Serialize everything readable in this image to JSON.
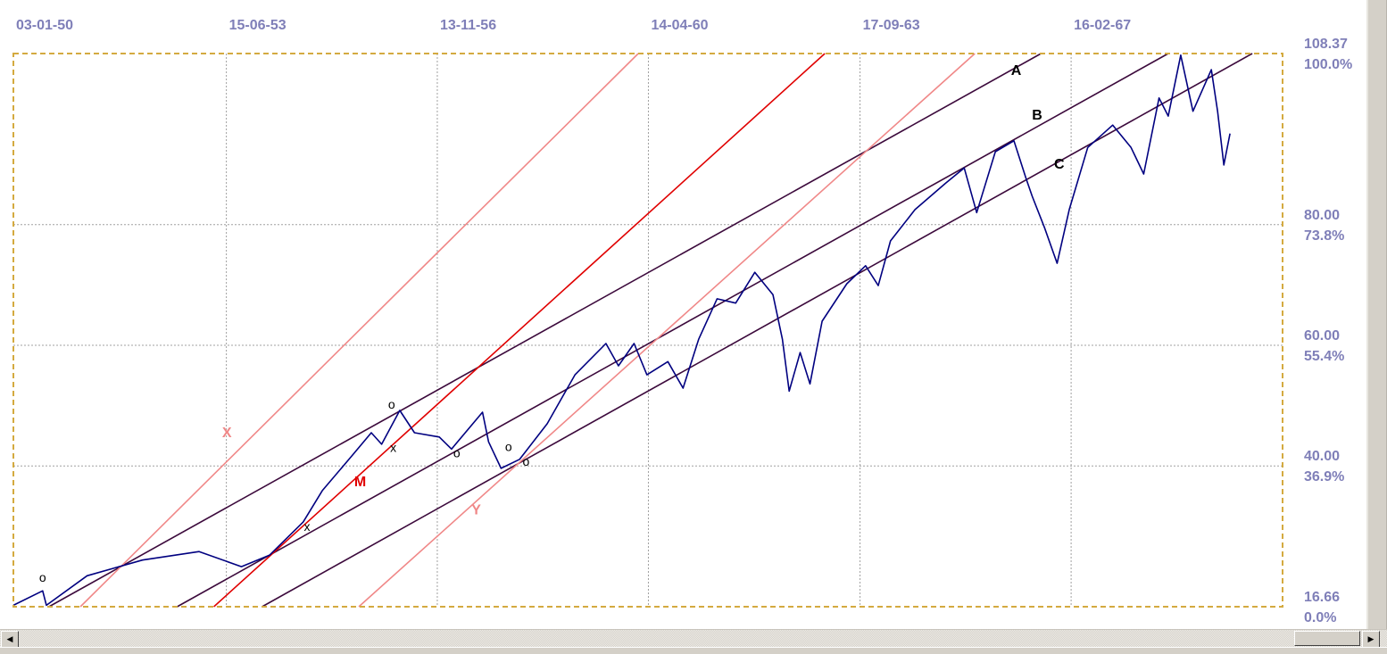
{
  "chart_data": {
    "type": "line",
    "title": "",
    "xlabel": "",
    "ylabel": "",
    "xlim": [
      "1950-01-03",
      "1970-07-20"
    ],
    "ylim": [
      16.66,
      108.37
    ],
    "grid": true,
    "x_ticks": [
      {
        "date": "1950-01-03",
        "label": "03-01-50"
      },
      {
        "date": "1953-06-15",
        "label": "15-06-53"
      },
      {
        "date": "1956-11-13",
        "label": "13-11-56"
      },
      {
        "date": "1960-04-14",
        "label": "14-04-60"
      },
      {
        "date": "1963-09-17",
        "label": "17-09-63"
      },
      {
        "date": "1967-02-16",
        "label": "16-02-67"
      }
    ],
    "y_ticks": [
      {
        "value": 108.37,
        "label": "108.37",
        "pct": "100.0%"
      },
      {
        "value": 80,
        "label": "80.00",
        "pct": "73.8%"
      },
      {
        "value": 60,
        "label": "60.00",
        "pct": "55.4%"
      },
      {
        "value": 40,
        "label": "40.00",
        "pct": "36.9%"
      },
      {
        "value": 16.66,
        "label": "16.66",
        "pct": "0.0%"
      }
    ],
    "series": [
      {
        "color": "#000080",
        "points": [
          [
            "1950-01-03",
            16.9
          ],
          [
            "1950-06-25",
            19.3
          ],
          [
            "1950-07-17",
            16.9
          ],
          [
            "1951-03-15",
            21.8
          ],
          [
            "1952-02-05",
            24.4
          ],
          [
            "1953-01-05",
            25.8
          ],
          [
            "1953-09-12",
            23.3
          ],
          [
            "1954-02-25",
            25.2
          ],
          [
            "1954-09-12",
            30.7
          ],
          [
            "1955-01-03",
            35.9
          ],
          [
            "1955-07-01",
            41.8
          ],
          [
            "1955-10-20",
            45.5
          ],
          [
            "1955-12-20",
            43.6
          ],
          [
            "1956-04-05",
            49.2
          ],
          [
            "1956-07-01",
            45.5
          ],
          [
            "1956-11-25",
            44.8
          ],
          [
            "1957-02-05",
            42.8
          ],
          [
            "1957-08-07",
            48.9
          ],
          [
            "1957-09-12",
            44.0
          ],
          [
            "1957-11-25",
            39.6
          ],
          [
            "1958-03-15",
            41.1
          ],
          [
            "1958-08-25",
            47.0
          ],
          [
            "1959-02-05",
            55.1
          ],
          [
            "1959-08-07",
            60.3
          ],
          [
            "1959-10-20",
            56.6
          ],
          [
            "1960-01-20",
            60.3
          ],
          [
            "1960-04-05",
            55.1
          ],
          [
            "1960-08-07",
            57.3
          ],
          [
            "1960-11-05",
            52.9
          ],
          [
            "1961-02-05",
            61.0
          ],
          [
            "1961-05-25",
            67.7
          ],
          [
            "1961-09-12",
            67.0
          ],
          [
            "1962-01-03",
            72.1
          ],
          [
            "1962-04-20",
            68.4
          ],
          [
            "1962-06-15",
            61.0
          ],
          [
            "1962-07-25",
            52.4
          ],
          [
            "1962-09-28",
            58.8
          ],
          [
            "1962-11-25",
            53.6
          ],
          [
            "1963-02-05",
            64.0
          ],
          [
            "1963-07-01",
            70.2
          ],
          [
            "1963-10-20",
            73.2
          ],
          [
            "1964-01-03",
            69.9
          ],
          [
            "1964-03-15",
            77.3
          ],
          [
            "1964-08-07",
            82.5
          ],
          [
            "1965-02-05",
            86.9
          ],
          [
            "1965-05-25",
            89.4
          ],
          [
            "1965-08-07",
            82.0
          ],
          [
            "1965-11-25",
            92.1
          ],
          [
            "1966-03-15",
            93.9
          ],
          [
            "1966-05-25",
            87.7
          ],
          [
            "1966-07-01",
            84.7
          ],
          [
            "1966-09-12",
            79.5
          ],
          [
            "1966-11-25",
            73.6
          ],
          [
            "1967-02-05",
            82.5
          ],
          [
            "1967-05-25",
            92.8
          ],
          [
            "1967-10-20",
            96.5
          ],
          [
            "1968-02-05",
            92.8
          ],
          [
            "1968-04-20",
            88.4
          ],
          [
            "1968-07-20",
            101.0
          ],
          [
            "1968-09-12",
            98.0
          ],
          [
            "1968-11-25",
            108.1
          ],
          [
            "1969-02-05",
            98.8
          ],
          [
            "1969-05-25",
            105.7
          ],
          [
            "1969-07-01",
            98.8
          ],
          [
            "1969-08-07",
            89.9
          ],
          [
            "1969-09-12",
            95.1
          ]
        ]
      }
    ],
    "trendlines": [
      {
        "id": "A",
        "color": "#3c0a3c",
        "from": [
          "1950-08-01",
          16.66
        ],
        "to": [
          "1966-08-22",
          108.37
        ]
      },
      {
        "id": "B",
        "color": "#3c0a3c",
        "from": [
          "1952-08-28",
          16.66
        ],
        "to": [
          "1968-09-12",
          108.37
        ]
      },
      {
        "id": "C",
        "color": "#3c0a3c",
        "from": [
          "1954-01-12",
          16.66
        ],
        "to": [
          "1970-01-22",
          108.37
        ]
      },
      {
        "id": "X",
        "color": "#f08888",
        "from": [
          "1951-02-03",
          16.66
        ],
        "to": [
          "1960-02-14",
          108.37
        ]
      },
      {
        "id": "Y",
        "color": "#f08888",
        "from": [
          "1955-08-07",
          16.66
        ],
        "to": [
          "1965-07-27",
          108.37
        ]
      },
      {
        "id": "M",
        "color": "#e00000",
        "from": [
          "1953-04-02",
          16.66
        ],
        "to": [
          "1963-02-21",
          108.37
        ]
      }
    ],
    "annotations": [
      {
        "text": "A",
        "date": "1966-03-28",
        "value": 104.8,
        "color": "#000000"
      },
      {
        "text": "B",
        "date": "1966-07-30",
        "value": 97.4,
        "color": "#000000"
      },
      {
        "text": "C",
        "date": "1966-12-08",
        "value": 89.3,
        "color": "#000000"
      },
      {
        "text": "M",
        "date": "1955-08-15",
        "value": 36.6,
        "color": "#e00000"
      },
      {
        "text": "X",
        "date": "1953-06-18",
        "value": 44.8,
        "color": "#f08888"
      },
      {
        "text": "Y",
        "date": "1957-07-01",
        "value": 32.0,
        "color": "#f08888"
      },
      {
        "text": "o",
        "date": "1950-06-25",
        "value": 20.8,
        "color": "#000000"
      },
      {
        "text": "o",
        "date": "1956-02-17",
        "value": 49.5,
        "color": "#000000"
      },
      {
        "text": "x",
        "date": "1956-02-27",
        "value": 42.3,
        "color": "#000000"
      },
      {
        "text": "x",
        "date": "1954-10-05",
        "value": 29.2,
        "color": "#000000"
      },
      {
        "text": "o",
        "date": "1957-03-08",
        "value": 41.4,
        "color": "#000000"
      },
      {
        "text": "o",
        "date": "1958-01-08",
        "value": 42.5,
        "color": "#000000"
      },
      {
        "text": "o",
        "date": "1958-04-22",
        "value": 40.0,
        "color": "#000000"
      }
    ],
    "colors": {
      "frame": "#d4aa40",
      "grid": "#a0a0a0",
      "axis_text": "#7f7fb8"
    }
  },
  "scrollbar": {
    "left_arrow": "◀",
    "right_arrow": "▶"
  }
}
